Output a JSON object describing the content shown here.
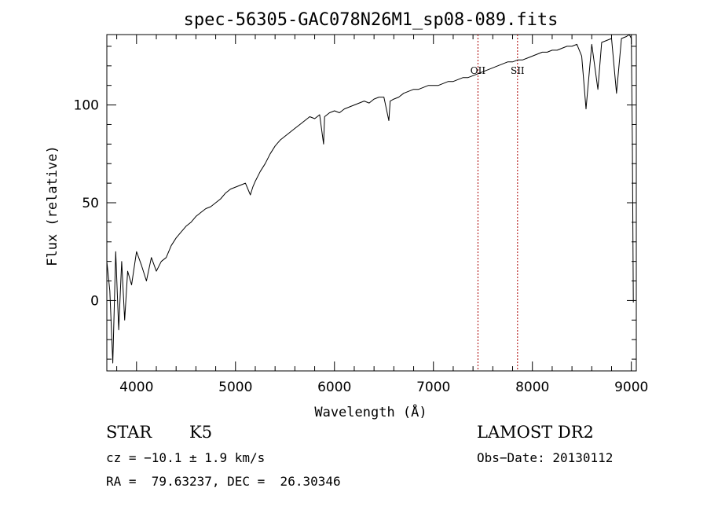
{
  "chart_data": {
    "type": "line",
    "title": "spec-56305-GAC078N26M1_sp08-089.fits",
    "xlabel": "Wavelength (Å)",
    "ylabel": "Flux (relative)",
    "xlim": [
      3700,
      9050
    ],
    "ylim": [
      -36,
      136
    ],
    "xticks": [
      4000,
      5000,
      6000,
      7000,
      8000,
      9000
    ],
    "yticks": [
      0,
      50,
      100
    ],
    "grid": false,
    "line_color": "#000000",
    "marker_color": "#aa0000",
    "line_markers": [
      {
        "label": "OII",
        "x": 7450
      },
      {
        "label": "SII",
        "x": 7850
      }
    ],
    "series": [
      {
        "x": [
          3700,
          3730,
          3760,
          3790,
          3820,
          3850,
          3880,
          3910,
          3950,
          4000,
          4050,
          4100,
          4150,
          4200,
          4250,
          4300,
          4350,
          4400,
          4450,
          4500,
          4550,
          4600,
          4650,
          4700,
          4750,
          4800,
          4850,
          4900,
          4950,
          5000,
          5050,
          5100,
          5150,
          5175,
          5200,
          5250,
          5300,
          5350,
          5400,
          5450,
          5500,
          5550,
          5600,
          5650,
          5700,
          5750,
          5800,
          5850,
          5890,
          5900,
          5950,
          6000,
          6050,
          6100,
          6150,
          6200,
          6250,
          6300,
          6350,
          6400,
          6450,
          6500,
          6550,
          6563,
          6600,
          6650,
          6700,
          6750,
          6800,
          6850,
          6900,
          6950,
          7000,
          7050,
          7100,
          7150,
          7200,
          7250,
          7300,
          7350,
          7400,
          7450,
          7500,
          7550,
          7600,
          7650,
          7700,
          7750,
          7800,
          7850,
          7900,
          7950,
          8000,
          8050,
          8100,
          8150,
          8200,
          8250,
          8300,
          8350,
          8400,
          8450,
          8498,
          8542,
          8600,
          8662,
          8700,
          8750,
          8800,
          8850,
          8900,
          8950,
          8980,
          9000,
          9010,
          9020
        ],
        "y": [
          20,
          5,
          -32,
          25,
          -15,
          20,
          -10,
          15,
          8,
          25,
          18,
          10,
          22,
          15,
          20,
          22,
          28,
          32,
          35,
          38,
          40,
          43,
          45,
          47,
          48,
          50,
          52,
          55,
          57,
          58,
          59,
          60,
          54,
          58,
          61,
          66,
          70,
          75,
          79,
          82,
          84,
          86,
          88,
          90,
          92,
          94,
          93,
          95,
          80,
          94,
          96,
          97,
          96,
          98,
          99,
          100,
          101,
          102,
          101,
          103,
          104,
          104,
          92,
          102,
          103,
          104,
          106,
          107,
          108,
          108,
          109,
          110,
          110,
          110,
          111,
          112,
          112,
          113,
          114,
          114,
          115,
          116,
          117,
          118,
          119,
          120,
          121,
          122,
          122,
          123,
          123,
          124,
          125,
          126,
          127,
          127,
          128,
          128,
          129,
          130,
          130,
          131,
          125,
          98,
          131,
          108,
          132,
          133,
          134,
          106,
          134,
          135,
          136,
          134,
          80,
          -1
        ]
      }
    ]
  },
  "info": {
    "obj_class": "STAR",
    "subclass": "K5",
    "survey": "LAMOST DR2",
    "cz": "cz = −10.1 ± 1.9 km/s",
    "obs_date": "Obs−Date: 20130112",
    "coords": "RA =  79.63237, DEC =  26.30346"
  }
}
